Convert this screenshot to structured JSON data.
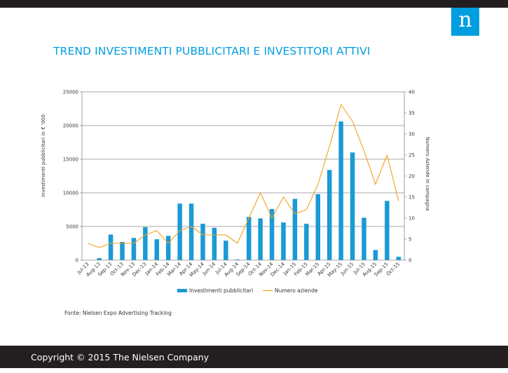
{
  "header": {
    "logo_letter": "n"
  },
  "title": "TREND INVESTIMENTI PUBBLICITARI  E INVESTITORI ATTIVI",
  "source": "Fonte: Nielsen  Expo Advertising Tracking",
  "footer": {
    "copyright": "Copyright © 2015 The Nielsen Company"
  },
  "colors": {
    "accent": "#009ee0",
    "bars": "#1a9ad6",
    "line": "#f5a020",
    "bar_band": "#231f20"
  },
  "chart_data": {
    "type": "bar",
    "categories": [
      "Jul-13",
      "Aug-13",
      "Sep-13",
      "Oct-13",
      "Nov-13",
      "Dec-13",
      "Jan-14",
      "Feb-14",
      "Mar-14",
      "Apr-14",
      "May-14",
      "Jun-14",
      "Jul-14",
      "Aug-14",
      "Sep-14",
      "Oct-14",
      "Nov-14",
      "Dec-14",
      "Jan-15",
      "Feb-15",
      "Mar-15",
      "Apr-15",
      "May-15",
      "Jun-15",
      "Jul-15",
      "Aug-15",
      "Sep-15",
      "Oct-15"
    ],
    "series": [
      {
        "name": "Investimenti pubblicitari",
        "type": "bar",
        "axis": "left",
        "values": [
          0,
          300,
          3800,
          2700,
          3300,
          4900,
          3100,
          3600,
          8400,
          8400,
          5400,
          4800,
          2900,
          100,
          6400,
          6200,
          7600,
          5600,
          9100,
          5400,
          9800,
          13400,
          20600,
          16000,
          6300,
          1500,
          8800,
          500
        ]
      },
      {
        "name": "Numero aziende",
        "type": "line",
        "axis": "right",
        "values": [
          4,
          3,
          4,
          4,
          4,
          6,
          7,
          4,
          7,
          8,
          6,
          6,
          6,
          4,
          10,
          16,
          10,
          15,
          11,
          12,
          18,
          27,
          37,
          33,
          26,
          18,
          25,
          14
        ]
      }
    ],
    "ylabel": "Investimenti pubblicitari in € '000",
    "y2label": "Numero Aziende in campagna",
    "ylim": [
      0,
      25000
    ],
    "yticks": [
      0,
      5000,
      10000,
      15000,
      20000,
      25000
    ],
    "y2lim": [
      0,
      40
    ],
    "y2ticks": [
      0,
      5,
      10,
      15,
      20,
      25,
      30,
      35,
      40
    ],
    "grid": true,
    "legend": "bottom"
  }
}
